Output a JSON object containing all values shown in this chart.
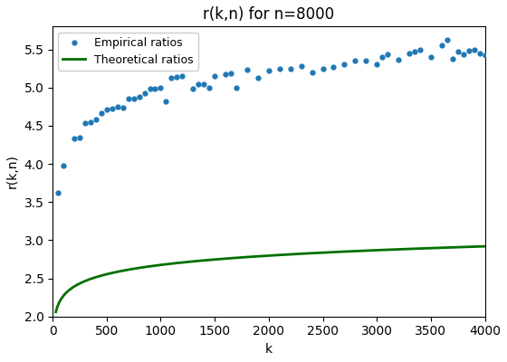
{
  "title": "r(k,n) for n=8000",
  "xlabel": "k",
  "ylabel": "r(k,n)",
  "n": 8000,
  "ylim": [
    2.0,
    5.8
  ],
  "xlim": [
    0,
    4000
  ],
  "empirical_color": "#1f77b4",
  "theoretical_color": "#007000",
  "empirical_markersize": 7,
  "theoretical_linewidth": 2.0,
  "legend_labels": [
    "Empirical ratios",
    "Theoretical ratios"
  ],
  "empirical_k": [
    50,
    100,
    200,
    250,
    300,
    350,
    400,
    450,
    500,
    550,
    600,
    650,
    700,
    750,
    800,
    850,
    900,
    950,
    1000,
    1050,
    1100,
    1150,
    1200,
    1300,
    1350,
    1400,
    1450,
    1500,
    1600,
    1650,
    1700,
    1800,
    1900,
    2000,
    2100,
    2200,
    2300,
    2400,
    2500,
    2600,
    2700,
    2800,
    2900,
    3000,
    3050,
    3100,
    3200,
    3300,
    3350,
    3400,
    3500,
    3600,
    3650,
    3700,
    3750,
    3800,
    3850,
    3900,
    3950,
    4000
  ],
  "empirical_r": [
    3.62,
    3.98,
    4.33,
    4.35,
    4.54,
    4.55,
    4.58,
    4.67,
    4.71,
    4.73,
    4.75,
    4.74,
    4.86,
    4.86,
    4.88,
    4.93,
    4.98,
    4.98,
    5.0,
    4.82,
    5.13,
    5.14,
    5.15,
    4.98,
    5.05,
    5.05,
    5.0,
    5.15,
    5.17,
    5.19,
    5.0,
    5.24,
    5.13,
    5.22,
    5.25,
    5.25,
    5.28,
    5.2,
    5.25,
    5.27,
    5.3,
    5.35,
    5.35,
    5.3,
    5.4,
    5.43,
    5.37,
    5.45,
    5.47,
    5.5,
    5.4,
    5.55,
    5.62,
    5.38,
    5.47,
    5.44,
    5.48,
    5.5,
    5.45,
    5.42
  ],
  "theory_start_k": 30,
  "theory_end_k": 4000,
  "theory_a": 1.462,
  "theory_b": 0.1758
}
